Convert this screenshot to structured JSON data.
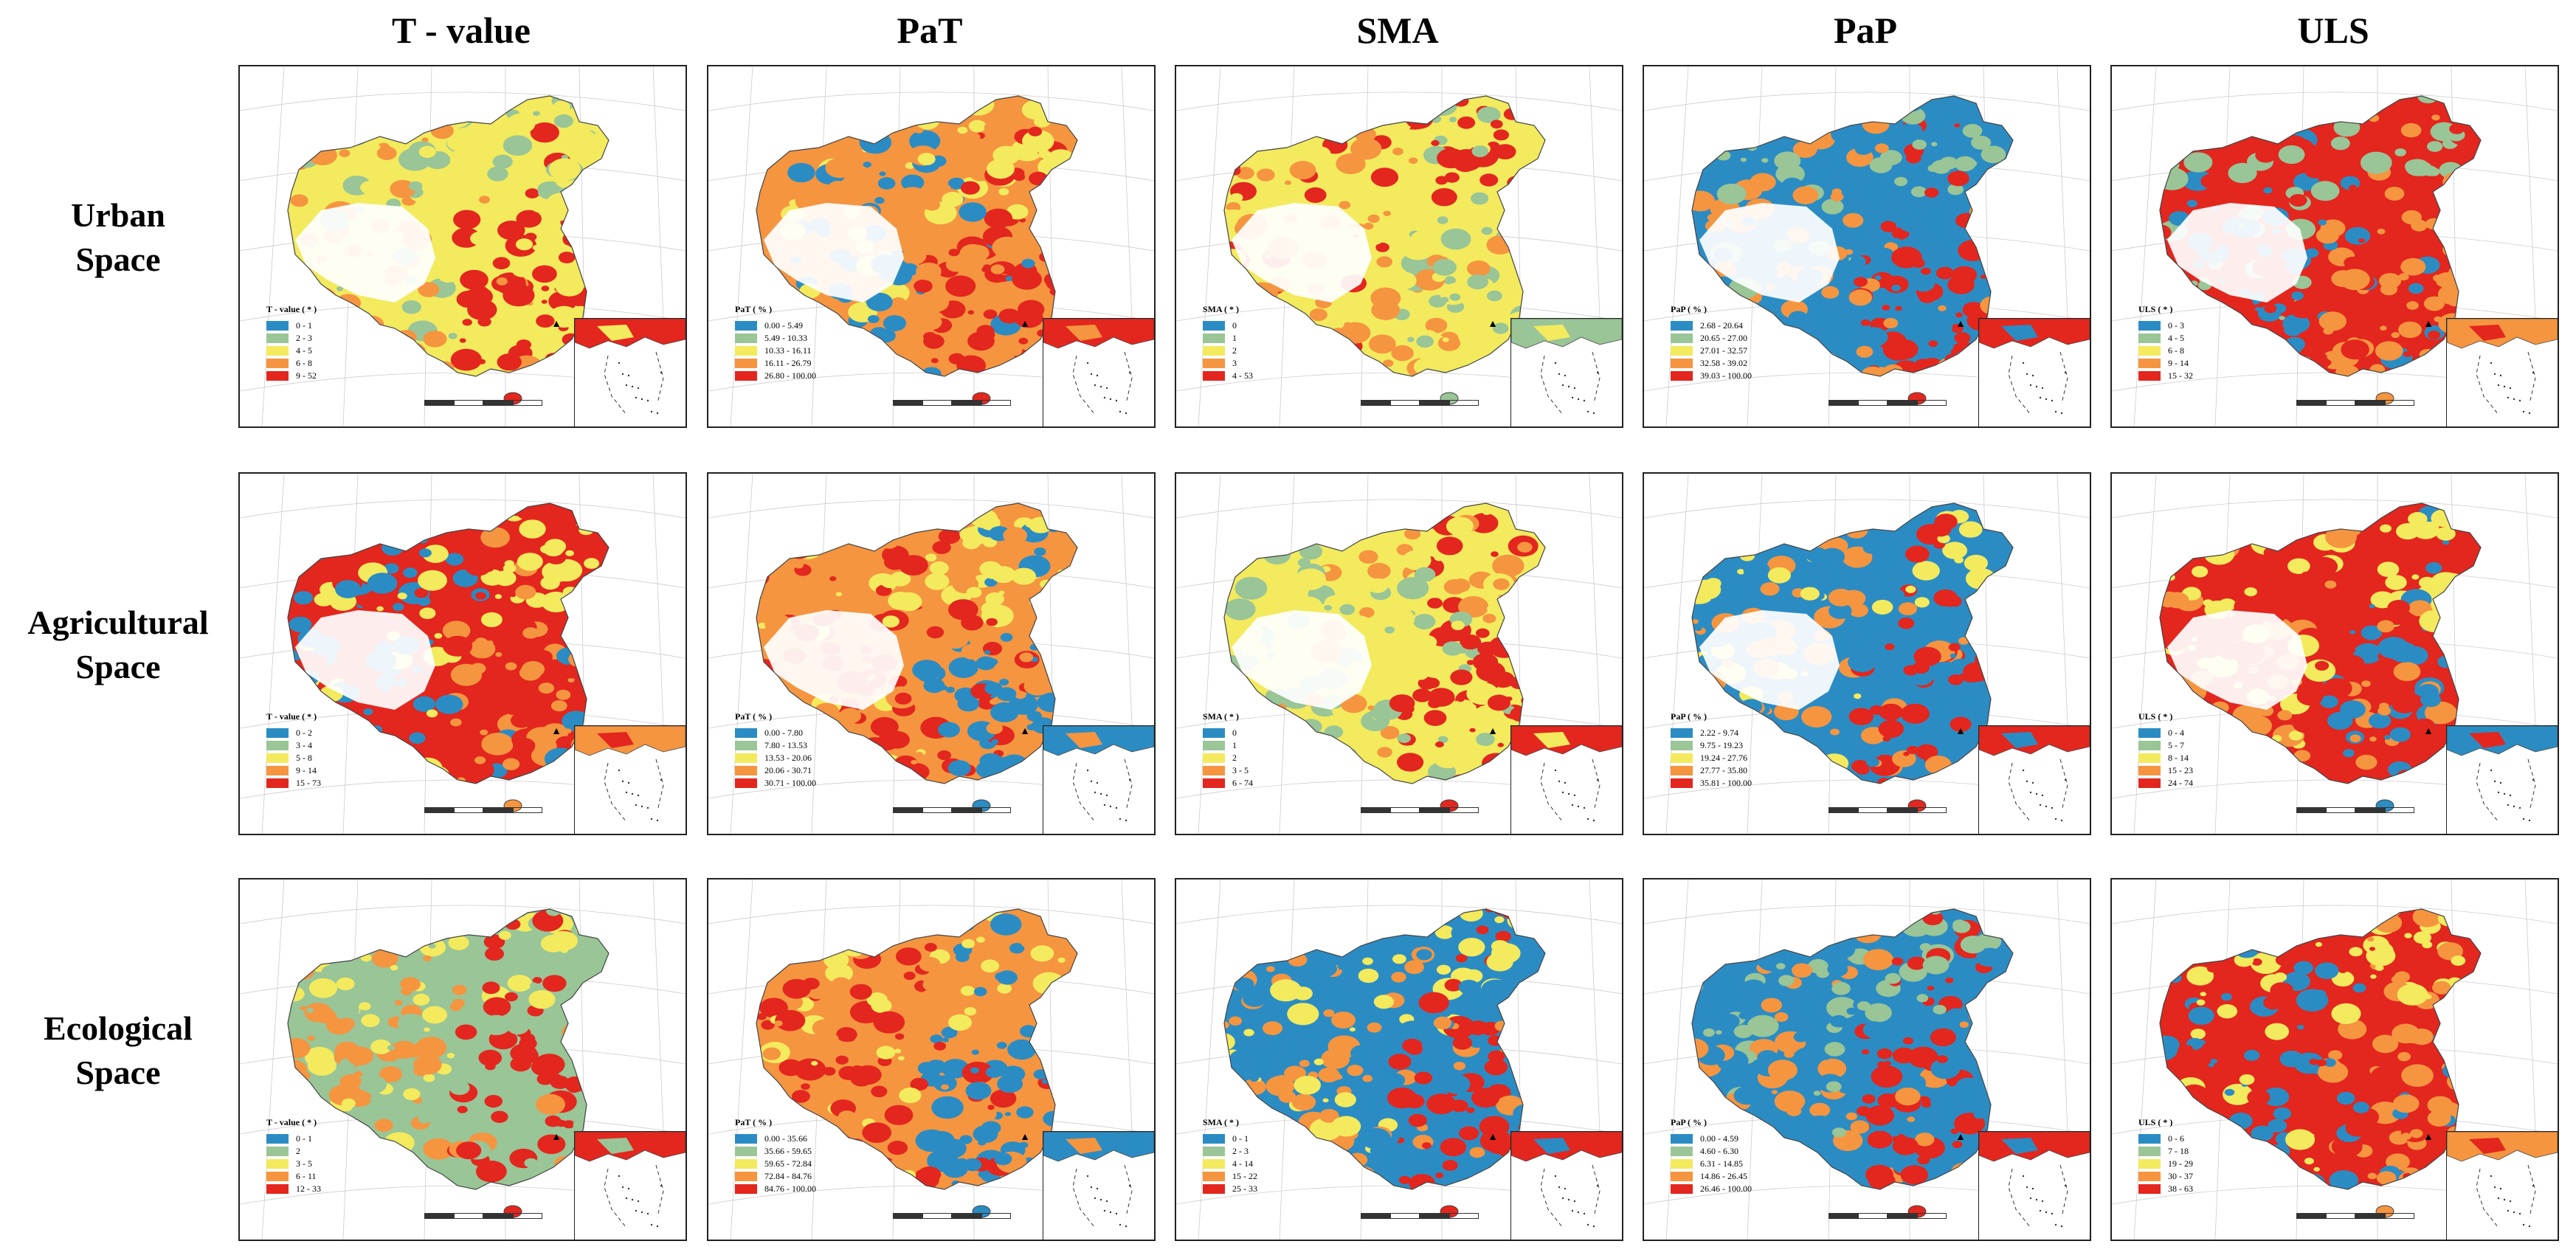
{
  "columns": [
    "T - value",
    "PaT",
    "SMA",
    "PaP",
    "ULS"
  ],
  "rows": [
    {
      "label_line1": "Urban",
      "label_line2": "Space"
    },
    {
      "label_line1": "Agricultural",
      "label_line2": "Space"
    },
    {
      "label_line1": "Ecological",
      "label_line2": "Space"
    }
  ],
  "colors": {
    "class1": "#2b8cc4",
    "class2": "#99c597",
    "class3": "#f3ea5e",
    "class4": "#f59540",
    "class5": "#e3261e",
    "no_data": "#ffffff",
    "border": "#222222"
  },
  "panels": [
    [
      {
        "legend_title": "T - value ( * )",
        "classes": [
          "0 - 1",
          "2 - 3",
          "4 - 5",
          "6 - 8",
          "9 - 52"
        ],
        "dominant": [
          3,
          5,
          4,
          2
        ]
      },
      {
        "legend_title": "PaT ( % )",
        "classes": [
          "0.00 - 5.49",
          "5.49 - 10.33",
          "10.33 - 16.11",
          "16.11 - 26.79",
          "26.80 - 100.00"
        ],
        "dominant": [
          4,
          5,
          1,
          3
        ]
      },
      {
        "legend_title": "SMA ( * )",
        "classes": [
          "0",
          "1",
          "2",
          "3",
          "4 - 53"
        ],
        "dominant": [
          3,
          2,
          4,
          5
        ]
      },
      {
        "legend_title": "PaP ( % )",
        "classes": [
          "2.68 - 20.64",
          "20.65 - 27.00",
          "27.01 - 32.57",
          "32.58 - 39.02",
          "39.03 - 100.00"
        ],
        "dominant": [
          1,
          5,
          4,
          2
        ]
      },
      {
        "legend_title": "ULS ( * )",
        "classes": [
          "0 - 3",
          "4 - 5",
          "6 - 8",
          "9 - 14",
          "15 - 32"
        ],
        "dominant": [
          5,
          4,
          1,
          2
        ]
      }
    ],
    [
      {
        "legend_title": "T - value ( * )",
        "classes": [
          "0 - 2",
          "3 - 4",
          "5 - 8",
          "9 - 14",
          "15 - 73"
        ],
        "dominant": [
          5,
          4,
          1,
          3
        ]
      },
      {
        "legend_title": "PaT ( % )",
        "classes": [
          "0.00 - 7.80",
          "7.80 - 13.53",
          "13.53 - 20.06",
          "20.06 - 30.71",
          "30.71 - 100.00"
        ],
        "dominant": [
          4,
          1,
          5,
          3
        ]
      },
      {
        "legend_title": "SMA ( * )",
        "classes": [
          "0",
          "1",
          "2",
          "3 - 5",
          "6 - 74"
        ],
        "dominant": [
          3,
          5,
          2,
          4
        ]
      },
      {
        "legend_title": "PaP ( % )",
        "classes": [
          "2.22 - 9.74",
          "9.75 - 19.23",
          "19.24 - 27.76",
          "27.77 - 35.80",
          "35.81 - 100.00"
        ],
        "dominant": [
          1,
          5,
          4,
          3
        ]
      },
      {
        "legend_title": "ULS ( * )",
        "classes": [
          "0 - 4",
          "5 - 7",
          "8 - 14",
          "15 - 23",
          "24 - 74"
        ],
        "dominant": [
          5,
          1,
          4,
          3
        ]
      }
    ],
    [
      {
        "legend_title": "T - value ( * )",
        "classes": [
          "0 - 1",
          "2",
          "3 - 5",
          "6 - 11",
          "12 - 33"
        ],
        "dominant": [
          2,
          5,
          4,
          3
        ]
      },
      {
        "legend_title": "PaT ( % )",
        "classes": [
          "0.00 - 35.66",
          "35.66 - 59.65",
          "59.65 - 72.84",
          "72.84 - 84.76",
          "84.76 - 100.00"
        ],
        "dominant": [
          4,
          1,
          5,
          3
        ]
      },
      {
        "legend_title": "SMA ( * )",
        "classes": [
          "0 - 1",
          "2 - 3",
          "4 - 14",
          "15 - 22",
          "25 - 33"
        ],
        "dominant": [
          1,
          5,
          4,
          3
        ]
      },
      {
        "legend_title": "PaP ( % )",
        "classes": [
          "0.00 - 4.59",
          "4.60 - 6.30",
          "6.31 - 14.85",
          "14.86 - 26.45",
          "26.46 - 100.00"
        ],
        "dominant": [
          1,
          5,
          4,
          2
        ]
      },
      {
        "legend_title": "ULS ( * )",
        "classes": [
          "0 - 6",
          "7 - 18",
          "19 - 29",
          "30 - 37",
          "38 - 63"
        ],
        "dominant": [
          5,
          4,
          1,
          3
        ]
      }
    ]
  ]
}
